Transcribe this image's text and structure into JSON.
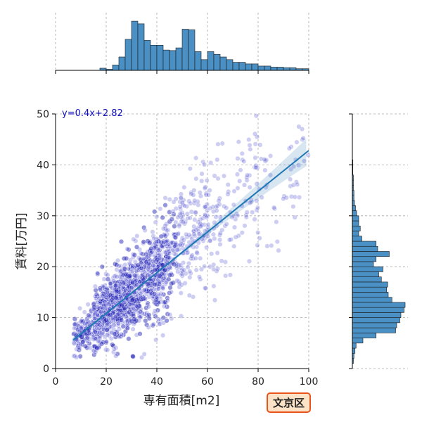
{
  "chart_data": {
    "type": "scatter",
    "title": "",
    "xlabel": "専有面積[m2]",
    "ylabel": "賃料[万円]",
    "xlim": [
      0,
      100
    ],
    "ylim": [
      0,
      50
    ],
    "x_ticks": [
      0,
      20,
      40,
      60,
      80,
      100
    ],
    "y_ticks": [
      0,
      10,
      20,
      30,
      40,
      50
    ],
    "grid": true,
    "regression": {
      "label": "y=0.4x+2.82",
      "slope": 0.4,
      "intercept": 2.82,
      "x_range": [
        7,
        100
      ],
      "color": "#1f77b4"
    },
    "point_color": "#4040c8",
    "point_groups": [
      {
        "x_min": 7,
        "x_max": 15,
        "count": 120,
        "y_slope": 0.42,
        "y_int": 2.5,
        "y_spread": 2.0
      },
      {
        "x_min": 15,
        "x_max": 30,
        "count": 700,
        "y_slope": 0.42,
        "y_int": 2.6,
        "y_spread": 3.0
      },
      {
        "x_min": 30,
        "x_max": 45,
        "count": 500,
        "y_slope": 0.42,
        "y_int": 2.2,
        "y_spread": 4.5
      },
      {
        "x_min": 45,
        "x_max": 60,
        "count": 220,
        "y_slope": 0.45,
        "y_int": 2.0,
        "y_spread": 5.5
      },
      {
        "x_min": 60,
        "x_max": 80,
        "count": 120,
        "y_slope": 0.42,
        "y_int": 2.5,
        "y_spread": 7.0
      },
      {
        "x_min": 80,
        "x_max": 100,
        "count": 50,
        "y_slope": 0.4,
        "y_int": 3.0,
        "y_spread": 8.0
      }
    ],
    "x_histogram": {
      "bin_start": 0,
      "bin_width": 2.5,
      "counts": [
        0,
        0,
        0,
        0,
        0,
        0,
        0,
        0.04,
        0.02,
        0.1,
        0.25,
        0.58,
        0.92,
        0.87,
        0.56,
        0.47,
        0.47,
        0.38,
        0.37,
        0.42,
        0.77,
        0.76,
        0.35,
        0.2,
        0.35,
        0.3,
        0.25,
        0.2,
        0.15,
        0.15,
        0.12,
        0.12,
        0.08,
        0.08,
        0.06,
        0.06,
        0.05,
        0.05,
        0.03,
        0.03,
        0.02
      ]
    },
    "y_histogram": {
      "bin_start": 0,
      "bin_width": 1,
      "counts": [
        0,
        0.02,
        0.03,
        0.05,
        0.07,
        0.2,
        0.45,
        0.82,
        0.84,
        0.9,
        0.92,
        0.98,
        1.0,
        0.75,
        0.68,
        0.65,
        0.67,
        0.55,
        0.5,
        0.58,
        0.4,
        0.45,
        0.7,
        0.48,
        0.45,
        0.18,
        0.12,
        0.15,
        0.12,
        0.12,
        0.08,
        0.06,
        0.04,
        0.03,
        0.03,
        0.02,
        0.02,
        0.02,
        0.01,
        0.01,
        0.01
      ]
    }
  },
  "badge": {
    "label": "文京区",
    "fill": "#fce3c8",
    "border": "#e8541a"
  }
}
